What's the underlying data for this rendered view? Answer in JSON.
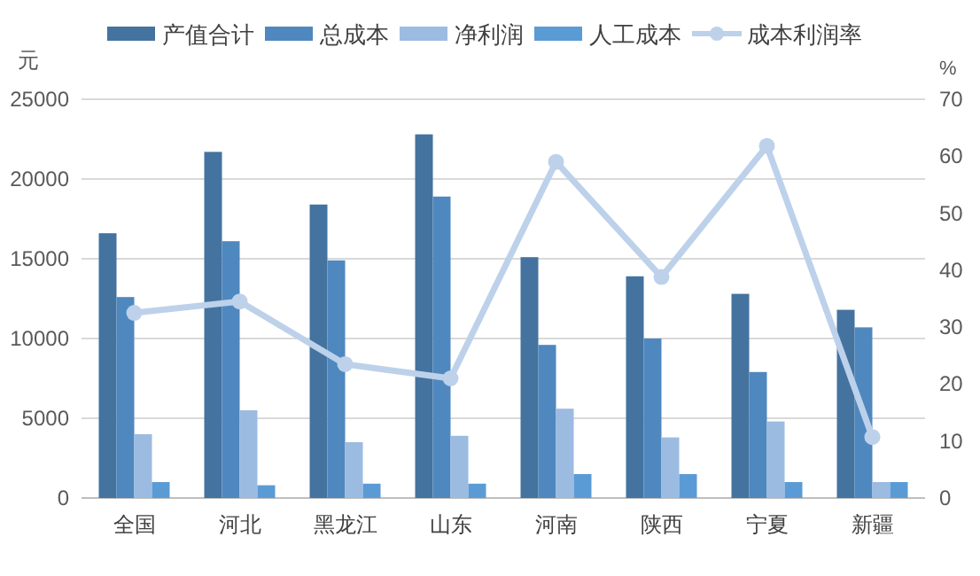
{
  "chart_data": {
    "type": "bar",
    "ylabel": "元",
    "y2label": "%",
    "categories": [
      "全国",
      "河北",
      "黑龙江",
      "山东",
      "河南",
      "陕西",
      "宁夏",
      "新疆"
    ],
    "series": [
      {
        "name": "产值合计",
        "color": "#44739f",
        "values": [
          16600,
          21700,
          18400,
          22800,
          15100,
          13900,
          12800,
          11800
        ]
      },
      {
        "name": "总成本",
        "color": "#4f88bf",
        "values": [
          12600,
          16100,
          14900,
          18900,
          9600,
          10000,
          7900,
          10700
        ]
      },
      {
        "name": "净利润",
        "color": "#9cbbe1",
        "values": [
          4000,
          5500,
          3500,
          3900,
          5600,
          3800,
          4800,
          1000
        ]
      },
      {
        "name": "人工成本",
        "color": "#5b9bd5",
        "values": [
          1000,
          800,
          900,
          900,
          1500,
          1500,
          1000,
          1000
        ]
      },
      {
        "name": "成本利润率",
        "type": "line",
        "axis": "y2",
        "color": "#bdd1ea",
        "marker": "circle",
        "values": [
          32.5,
          34.5,
          23.5,
          21,
          59,
          38.8,
          61.8,
          10.7
        ]
      }
    ],
    "ylim": [
      0,
      25000
    ],
    "yticks": [
      0,
      5000,
      10000,
      15000,
      20000,
      25000
    ],
    "y2lim": [
      0,
      70
    ],
    "y2ticks": [
      0,
      10,
      20,
      30,
      40,
      50,
      60,
      70
    ],
    "grid": "y",
    "legend": "top"
  }
}
